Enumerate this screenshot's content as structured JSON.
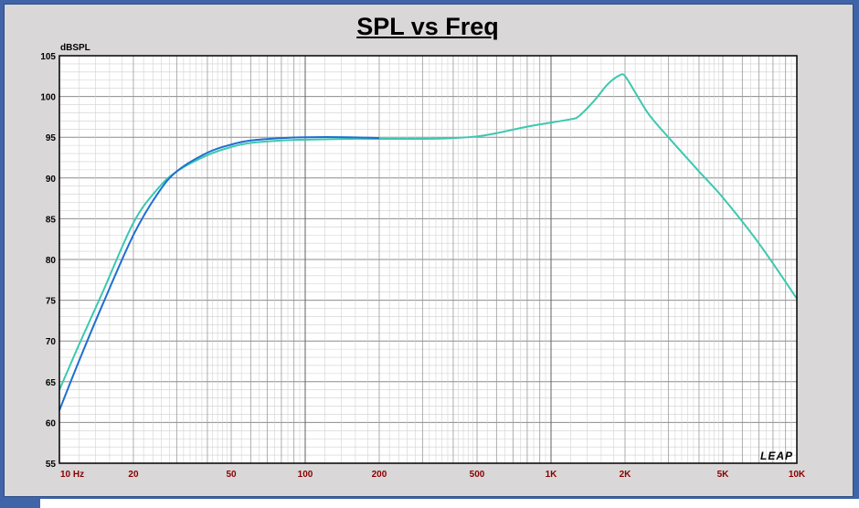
{
  "chart_data": {
    "type": "line",
    "title": "SPL vs Freq",
    "ylabel": "dBSPL",
    "xscale": "log",
    "xlim": [
      10,
      10000
    ],
    "ylim": [
      55,
      105
    ],
    "yticks": [
      55,
      60,
      65,
      70,
      75,
      80,
      85,
      90,
      95,
      100,
      105
    ],
    "xticks": [
      {
        "value": 10,
        "label": "10  Hz"
      },
      {
        "value": 20,
        "label": "20"
      },
      {
        "value": 50,
        "label": "50"
      },
      {
        "value": 100,
        "label": "100"
      },
      {
        "value": 200,
        "label": "200"
      },
      {
        "value": 500,
        "label": "500"
      },
      {
        "value": 1000,
        "label": "1K"
      },
      {
        "value": 2000,
        "label": "2K"
      },
      {
        "value": 5000,
        "label": "5K"
      },
      {
        "value": 10000,
        "label": "10K"
      }
    ],
    "grid": true,
    "logo": "LEAP",
    "series": [
      {
        "color": "#3cc8b0",
        "x": [
          10,
          12,
          15,
          20,
          25,
          30,
          40,
          50,
          60,
          80,
          100,
          150,
          200,
          300,
          400,
          500,
          600,
          800,
          1000,
          1200,
          1300,
          1500,
          1700,
          1900,
          2000,
          2200,
          2500,
          3000,
          4000,
          5000,
          7000,
          10000
        ],
        "y": [
          64.0,
          69.5,
          76.0,
          84.5,
          88.6,
          90.8,
          92.8,
          93.8,
          94.3,
          94.6,
          94.7,
          94.8,
          94.8,
          94.8,
          94.9,
          95.1,
          95.5,
          96.3,
          96.8,
          97.2,
          97.6,
          99.5,
          101.5,
          102.6,
          102.5,
          100.5,
          97.8,
          95.0,
          90.8,
          87.6,
          82.0,
          75.2
        ]
      },
      {
        "color": "#1e6fd0",
        "x": [
          10,
          12,
          15,
          20,
          25,
          30,
          40,
          50,
          60,
          80,
          100,
          150,
          200
        ],
        "y": [
          61.5,
          67.5,
          74.5,
          83.0,
          88.0,
          90.8,
          93.1,
          94.1,
          94.6,
          94.9,
          95.0,
          95.0,
          94.9
        ]
      }
    ]
  }
}
